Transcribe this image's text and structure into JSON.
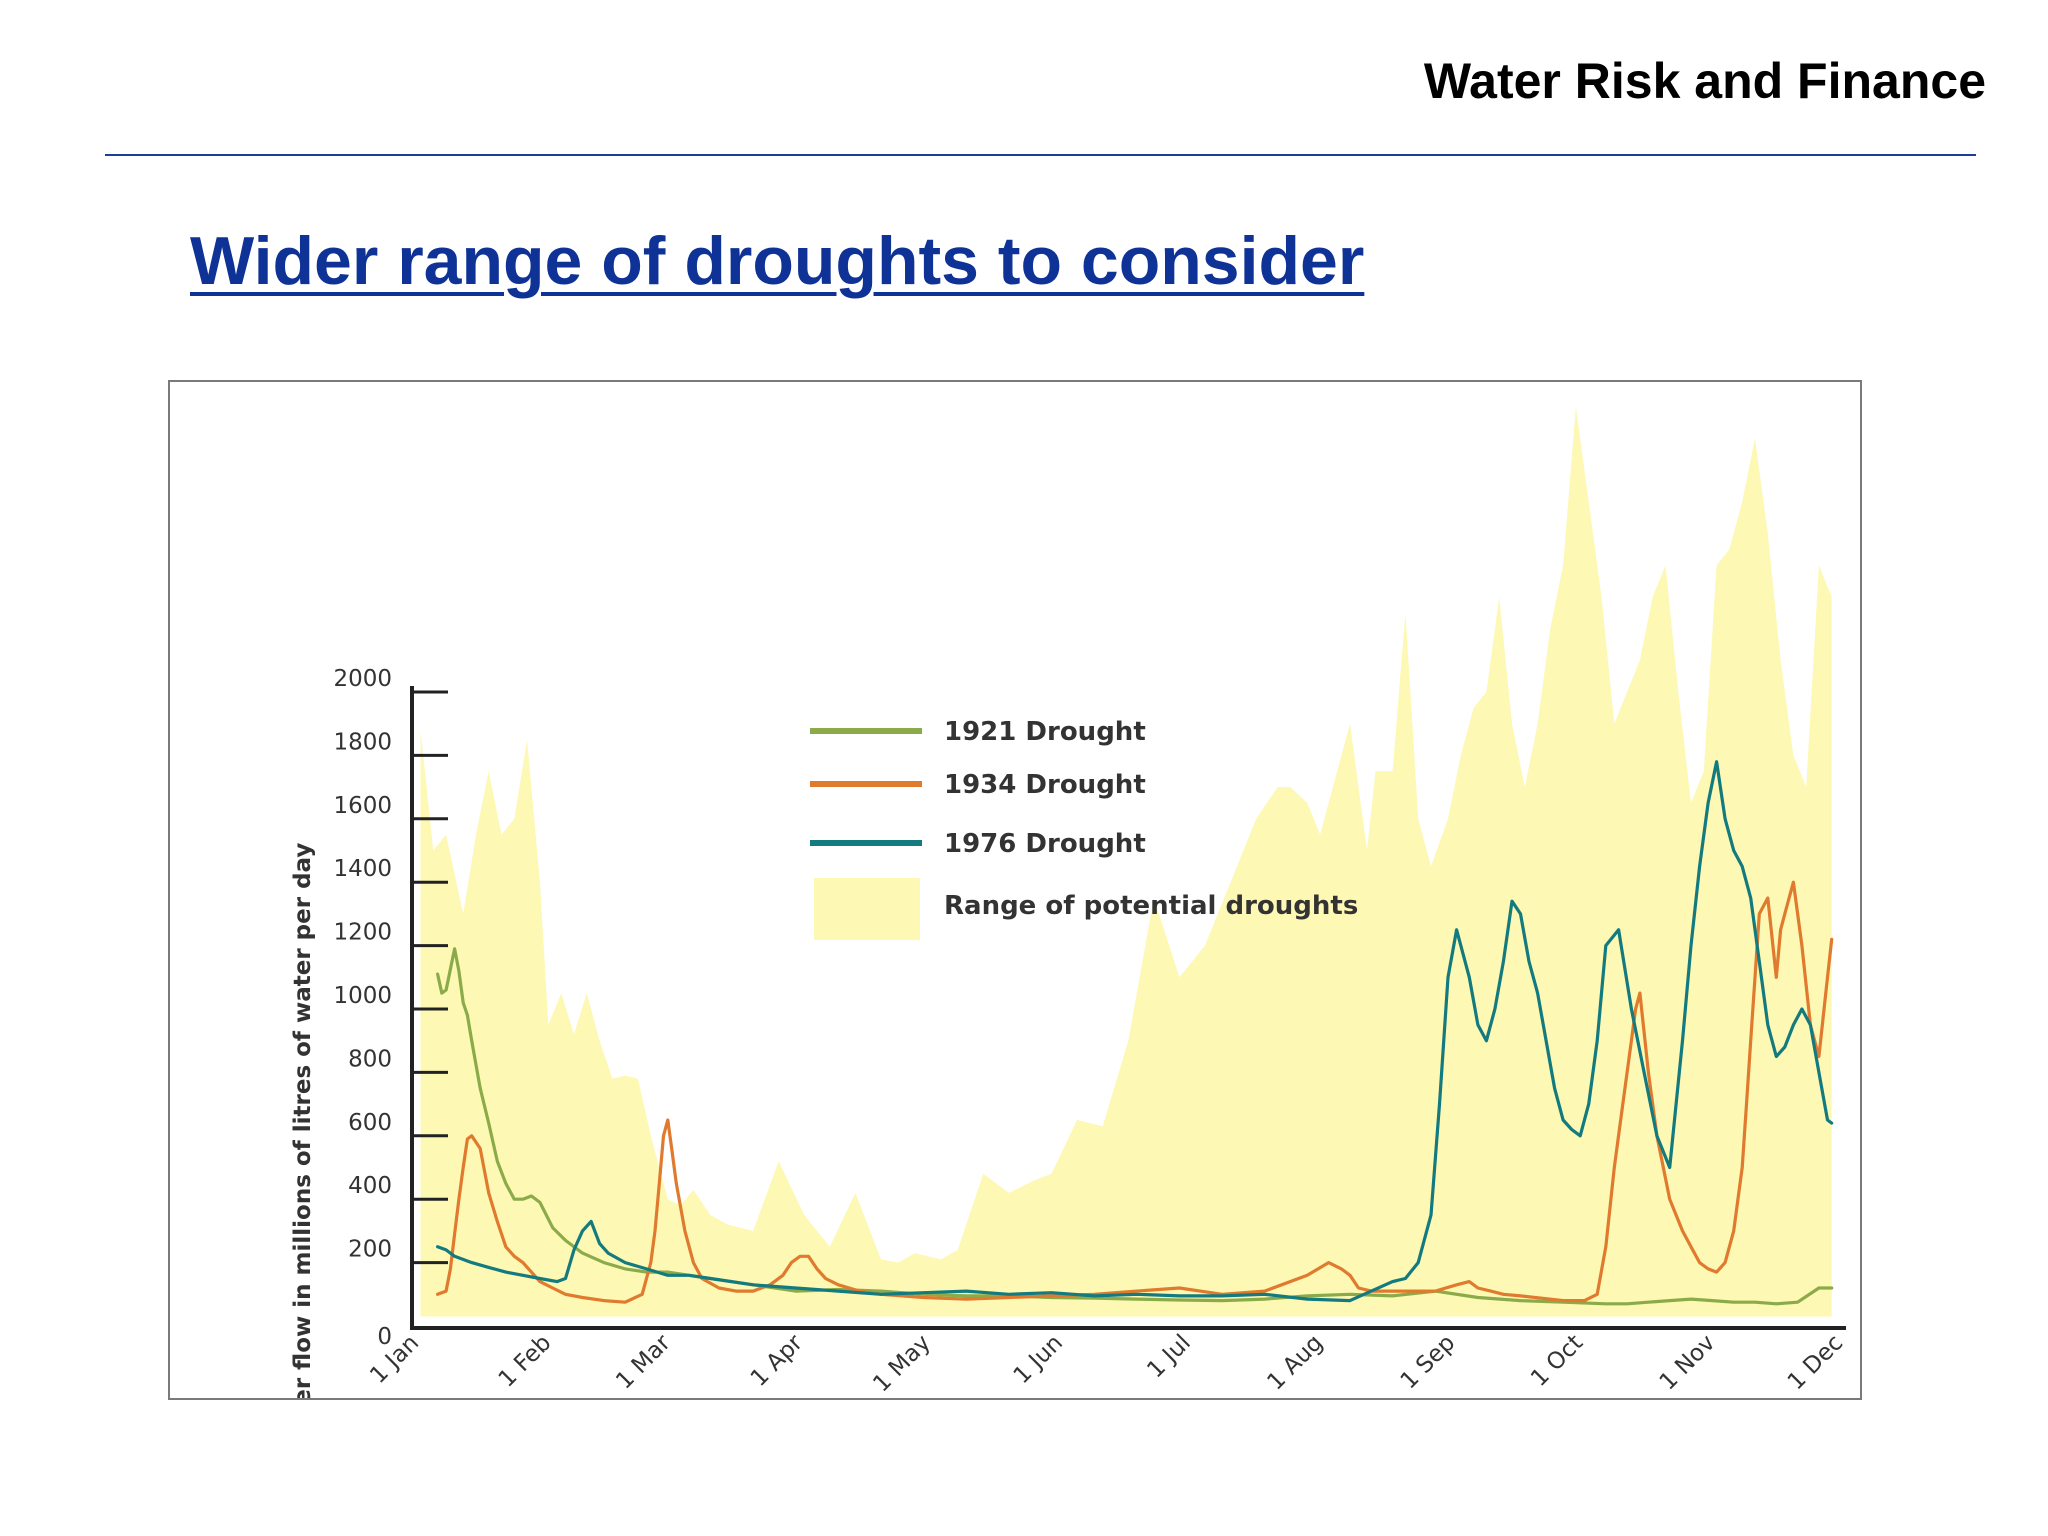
{
  "header": {
    "title": "Water Risk and Finance"
  },
  "slide": {
    "heading": "Wider range of droughts to consider"
  },
  "chart_data": {
    "type": "line",
    "title": "",
    "ylabel": "River flow in millions of litres of water per day",
    "xlabel": "",
    "ylim": [
      0,
      2000
    ],
    "xlim": [
      0,
      334
    ],
    "yticks": [
      0,
      200,
      400,
      600,
      800,
      1000,
      1200,
      1400,
      1600,
      1800,
      2000
    ],
    "xticks": [
      {
        "label": "1 Jan",
        "day": 0
      },
      {
        "label": "1 Feb",
        "day": 31
      },
      {
        "label": "1 Mar",
        "day": 59
      },
      {
        "label": "1 Apr",
        "day": 90
      },
      {
        "label": "1 May",
        "day": 120
      },
      {
        "label": "1 Jun",
        "day": 151
      },
      {
        "label": "1 Jul",
        "day": 181
      },
      {
        "label": "1 Aug",
        "day": 212
      },
      {
        "label": "1 Sep",
        "day": 243
      },
      {
        "label": "1 Oct",
        "day": 273
      },
      {
        "label": "1 Nov",
        "day": 304
      },
      {
        "label": "1 Dec",
        "day": 334
      }
    ],
    "legend_position": "top-center",
    "colors": {
      "1921": "#8bab4a",
      "1934": "#e07a2e",
      "1976": "#137a7f",
      "range": "#fdf8b3"
    },
    "range": {
      "name": "Range of potential droughts",
      "x": [
        2,
        5,
        8,
        12,
        15,
        18,
        21,
        24,
        27,
        30,
        32,
        35,
        38,
        41,
        44,
        47,
        50,
        53,
        56,
        60,
        63,
        66,
        70,
        74,
        80,
        86,
        92,
        98,
        104,
        110,
        114,
        118,
        124,
        128,
        134,
        140,
        146,
        150,
        156,
        162,
        168,
        174,
        180,
        186,
        192,
        198,
        203,
        206,
        210,
        213,
        216,
        220,
        224,
        226,
        230,
        233,
        236,
        239,
        243,
        246,
        249,
        252,
        255,
        258,
        261,
        264,
        267,
        270,
        273,
        276,
        279,
        282,
        285,
        288,
        291,
        294,
        297,
        300,
        303,
        306,
        309,
        312,
        315,
        318,
        321,
        324,
        327,
        330,
        333
      ],
      "upper": [
        1880,
        1500,
        1550,
        1300,
        1550,
        1750,
        1550,
        1600,
        1850,
        1400,
        950,
        1050,
        920,
        1050,
        900,
        780,
        790,
        780,
        600,
        400,
        380,
        430,
        350,
        320,
        300,
        520,
        350,
        250,
        420,
        210,
        200,
        230,
        210,
        240,
        480,
        420,
        460,
        480,
        650,
        630,
        900,
        1350,
        1100,
        1200,
        1400,
        1600,
        1700,
        1700,
        1650,
        1550,
        1700,
        1900,
        1500,
        1750,
        1750,
        2250,
        1600,
        1450,
        1600,
        1800,
        1950,
        2000,
        2300,
        1900,
        1700,
        1900,
        2200,
        2400,
        2900,
        2600,
        2300,
        1900,
        2000,
        2100,
        2300,
        2400,
        2000,
        1650,
        1750,
        2400,
        2450,
        2600,
        2800,
        2500,
        2100,
        1800,
        1700,
        2400,
        2300
      ],
      "lower": [
        30,
        30,
        30,
        30,
        30,
        30,
        30,
        30,
        30,
        30,
        30,
        30,
        30,
        30,
        30,
        30,
        30,
        30,
        30,
        30,
        30,
        30,
        30,
        30,
        30,
        30,
        30,
        30,
        30,
        30,
        30,
        30,
        30,
        30,
        30,
        30,
        30,
        30,
        30,
        30,
        30,
        30,
        30,
        30,
        30,
        30,
        30,
        30,
        30,
        30,
        30,
        30,
        30,
        30,
        30,
        30,
        30,
        30,
        30,
        30,
        30,
        30,
        30,
        30,
        30,
        30,
        30,
        30,
        30,
        30,
        30,
        30,
        30,
        30,
        30,
        30,
        30,
        30,
        30,
        30,
        30,
        30,
        30,
        30,
        30,
        30,
        30,
        30,
        30
      ]
    },
    "series": [
      {
        "name": "1921 Drought",
        "x": [
          6,
          7,
          8,
          10,
          11,
          12,
          13,
          14,
          16,
          18,
          20,
          22,
          24,
          26,
          28,
          30,
          33,
          36,
          40,
          45,
          50,
          55,
          60,
          65,
          70,
          80,
          90,
          100,
          110,
          120,
          130,
          140,
          150,
          160,
          170,
          180,
          190,
          200,
          210,
          220,
          230,
          240,
          250,
          260,
          270,
          280,
          285,
          290,
          295,
          300,
          305,
          310,
          315,
          320,
          325,
          330,
          333
        ],
        "values": [
          1110,
          1050,
          1060,
          1190,
          1120,
          1020,
          980,
          900,
          750,
          640,
          520,
          450,
          400,
          400,
          410,
          390,
          310,
          270,
          230,
          200,
          180,
          170,
          170,
          160,
          150,
          130,
          110,
          115,
          110,
          100,
          95,
          95,
          90,
          88,
          85,
          82,
          80,
          85,
          95,
          100,
          95,
          110,
          90,
          80,
          75,
          70,
          70,
          75,
          80,
          85,
          80,
          75,
          75,
          70,
          75,
          120,
          120
        ]
      },
      {
        "name": "1934 Drought",
        "x": [
          6,
          8,
          9,
          10,
          11,
          12,
          13,
          14,
          16,
          18,
          20,
          22,
          24,
          26,
          28,
          30,
          33,
          36,
          40,
          45,
          50,
          54,
          56,
          57,
          58,
          59,
          60,
          61,
          62,
          64,
          66,
          68,
          72,
          76,
          80,
          84,
          87,
          89,
          91,
          93,
          95,
          97,
          100,
          105,
          110,
          115,
          120,
          130,
          140,
          150,
          160,
          170,
          180,
          190,
          200,
          210,
          215,
          218,
          220,
          222,
          225,
          230,
          235,
          240,
          245,
          248,
          250,
          253,
          256,
          260,
          270,
          275,
          278,
          280,
          282,
          284,
          285,
          286,
          287,
          288,
          290,
          292,
          295,
          298,
          300,
          302,
          304,
          306,
          308,
          310,
          312,
          313,
          314,
          315,
          316,
          318,
          320,
          321,
          322,
          323,
          324,
          326,
          328,
          330,
          332,
          333
        ],
        "values": [
          100,
          110,
          180,
          290,
          400,
          500,
          590,
          600,
          560,
          420,
          330,
          250,
          220,
          200,
          170,
          140,
          120,
          100,
          90,
          80,
          75,
          100,
          200,
          300,
          450,
          600,
          650,
          550,
          450,
          300,
          200,
          150,
          120,
          110,
          110,
          130,
          160,
          200,
          220,
          220,
          180,
          150,
          130,
          110,
          100,
          95,
          90,
          85,
          90,
          95,
          100,
          110,
          120,
          100,
          110,
          160,
          200,
          180,
          160,
          120,
          110,
          110,
          110,
          110,
          130,
          140,
          120,
          110,
          100,
          95,
          80,
          80,
          100,
          250,
          500,
          700,
          800,
          900,
          1000,
          1050,
          800,
          600,
          400,
          300,
          250,
          200,
          180,
          170,
          200,
          300,
          500,
          700,
          900,
          1100,
          1300,
          1350,
          1100,
          1250,
          1300,
          1350,
          1400,
          1200,
          950,
          850,
          1100,
          1220
        ]
      },
      {
        "name": "1976 Drought",
        "x": [
          6,
          8,
          10,
          14,
          18,
          22,
          26,
          30,
          34,
          36,
          38,
          40,
          42,
          44,
          46,
          50,
          55,
          60,
          65,
          70,
          80,
          90,
          100,
          110,
          120,
          130,
          140,
          150,
          160,
          170,
          180,
          190,
          200,
          210,
          220,
          225,
          230,
          233,
          236,
          239,
          241,
          243,
          245,
          248,
          250,
          252,
          254,
          256,
          258,
          260,
          262,
          264,
          266,
          268,
          270,
          272,
          274,
          276,
          278,
          280,
          283,
          286,
          289,
          292,
          295,
          298,
          300,
          302,
          304,
          306,
          308,
          310,
          312,
          314,
          316,
          318,
          320,
          322,
          324,
          326,
          328,
          330,
          332,
          333
        ],
        "values": [
          250,
          240,
          220,
          200,
          185,
          170,
          160,
          150,
          140,
          150,
          240,
          300,
          330,
          260,
          230,
          200,
          180,
          160,
          160,
          150,
          130,
          120,
          110,
          100,
          105,
          110,
          100,
          105,
          95,
          100,
          95,
          95,
          100,
          85,
          80,
          110,
          140,
          150,
          200,
          350,
          700,
          1100,
          1250,
          1100,
          950,
          900,
          1000,
          1150,
          1340,
          1300,
          1150,
          1050,
          900,
          750,
          650,
          620,
          600,
          700,
          900,
          1200,
          1250,
          1000,
          800,
          600,
          500,
          900,
          1200,
          1450,
          1650,
          1780,
          1600,
          1500,
          1450,
          1350,
          1150,
          950,
          850,
          880,
          950,
          1000,
          950,
          800,
          650,
          640
        ]
      }
    ]
  }
}
